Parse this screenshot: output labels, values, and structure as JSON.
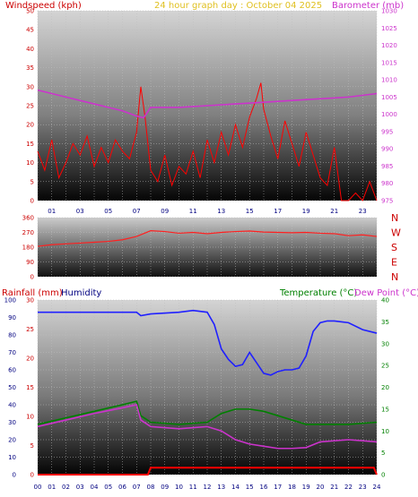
{
  "header": {
    "wind_label": "Windspeed (kph)",
    "title": "24 hour graph day : October 04 2025",
    "baro_label": "Barometer (mb)",
    "rain_label": "Rainfall (mm)",
    "humidity_label": "Humidity",
    "temp_label": "Temperature (°C)",
    "dew_label": "Dew Point (°C)"
  },
  "colors": {
    "wind": "#ff0000",
    "wind_avg": "#3030ff",
    "gust_low": "#008000",
    "baro": "#cc33cc",
    "direction": "#ff0000",
    "humidity": "#2020ff",
    "temperature": "#008000",
    "dewpoint": "#cc33cc",
    "rain": "#ff0000",
    "title": "#e0c020",
    "axis_red": "#cc0000",
    "axis_navy": "#000080"
  },
  "x_ticks": [
    "01",
    "03",
    "05",
    "07",
    "09",
    "11",
    "13",
    "15",
    "17",
    "19",
    "21",
    "23"
  ],
  "x_ticks_bottom": [
    "00",
    "01",
    "02",
    "03",
    "04",
    "05",
    "06",
    "07",
    "08",
    "09",
    "10",
    "11",
    "12",
    "13",
    "14",
    "15",
    "16",
    "17",
    "18",
    "19",
    "20",
    "21",
    "22",
    "23",
    "24"
  ],
  "chart_data": [
    {
      "type": "line",
      "title": "24 hour graph day : October 04 2025",
      "ylabel": "Windspeed (kph)",
      "y2label": "Barometer (mb)",
      "ylim": [
        0,
        50
      ],
      "y2lim": [
        975,
        1030
      ],
      "y_ticks": [
        0,
        5,
        10,
        15,
        20,
        25,
        30,
        35,
        40,
        45,
        50
      ],
      "y2_ticks": [
        975,
        980,
        985,
        990,
        995,
        1000,
        1005,
        1010,
        1015,
        1020,
        1025,
        1030
      ],
      "grid": true,
      "series": [
        {
          "name": "Windspeed (kph)",
          "axis": "left",
          "x": [
            0,
            0.5,
            1,
            1.5,
            2,
            2.5,
            3,
            3.5,
            4,
            4.5,
            5,
            5.5,
            6,
            6.5,
            7,
            7.3,
            7.6,
            8,
            8.5,
            9,
            9.5,
            10,
            10.5,
            11,
            11.5,
            12,
            12.5,
            13,
            13.5,
            14,
            14.5,
            15,
            15.5,
            15.8,
            16,
            16.5,
            17,
            17.5,
            18,
            18.5,
            19,
            19.5,
            20,
            20.5,
            21,
            21.5,
            22,
            22.5,
            23,
            23.5,
            24
          ],
          "y": [
            13,
            8,
            16,
            6,
            10,
            15,
            12,
            17,
            9,
            14,
            10,
            16,
            13,
            11,
            18,
            30,
            22,
            8,
            5,
            12,
            4,
            9,
            7,
            13,
            6,
            16,
            10,
            18,
            12,
            20,
            14,
            22,
            27,
            31,
            24,
            17,
            11,
            21,
            15,
            9,
            18,
            12,
            6,
            4,
            14,
            0,
            0,
            2,
            0,
            5,
            0
          ]
        },
        {
          "name": "Barometer (mb)",
          "axis": "right",
          "x": [
            0,
            2,
            4,
            6,
            7,
            7.5,
            8,
            10,
            12,
            14,
            16,
            18,
            20,
            22,
            24
          ],
          "y": [
            1007,
            1005,
            1003,
            1001,
            999.5,
            999,
            1002,
            1002,
            1002.5,
            1003,
            1003.5,
            1004,
            1004.5,
            1005,
            1006
          ]
        }
      ]
    },
    {
      "type": "line",
      "ylabel": "Wind direction",
      "ylim": [
        0,
        360
      ],
      "y_ticks": [
        0,
        90,
        180,
        270,
        360
      ],
      "y2_ticks": [
        "N",
        "E",
        "S",
        "W",
        "N"
      ],
      "grid": true,
      "series": [
        {
          "name": "Wind direction",
          "x": [
            0,
            1,
            2,
            3,
            4,
            5,
            6,
            7,
            8,
            9,
            10,
            11,
            12,
            13,
            14,
            15,
            16,
            17,
            18,
            19,
            20,
            21,
            22,
            23,
            24
          ],
          "y": [
            185,
            195,
            200,
            205,
            210,
            215,
            225,
            245,
            280,
            275,
            265,
            270,
            262,
            270,
            275,
            278,
            272,
            270,
            268,
            270,
            265,
            262,
            250,
            255,
            245
          ]
        }
      ]
    },
    {
      "type": "line",
      "ylabel": "Rainfall (mm)",
      "ylim": [
        0,
        100
      ],
      "y_ticks_rain": [
        0,
        5,
        10,
        15,
        20,
        25,
        30
      ],
      "y_ticks_humidity": [
        0,
        10,
        20,
        30,
        40,
        50,
        60,
        70,
        80,
        90,
        100
      ],
      "y2_ticks": [
        0,
        5,
        10,
        15,
        20,
        25,
        30,
        35,
        40
      ],
      "grid": true,
      "series": [
        {
          "name": "Humidity",
          "x": [
            0,
            2,
            4,
            6,
            7,
            7.3,
            8,
            10,
            11,
            12,
            12.5,
            13,
            13.5,
            14,
            14.5,
            15,
            15.5,
            16,
            16.5,
            17,
            17.5,
            18,
            18.5,
            19,
            19.5,
            20,
            20.5,
            21,
            22,
            23,
            24
          ],
          "y": [
            93,
            93,
            93,
            93,
            93,
            91,
            92,
            93,
            94,
            93,
            86,
            72,
            66,
            62,
            63,
            70,
            64,
            58,
            57,
            59,
            60,
            60,
            61,
            68,
            82,
            87,
            88,
            88,
            87,
            83,
            81
          ]
        },
        {
          "name": "Temperature (°C)",
          "x": [
            0,
            2,
            4,
            6,
            7,
            7.3,
            8,
            10,
            12,
            13,
            14,
            15,
            16,
            17,
            18,
            19,
            20,
            22,
            24
          ],
          "y": [
            11.5,
            13,
            14.5,
            16,
            16.8,
            13.5,
            12,
            11.5,
            12,
            14,
            15,
            15,
            14.5,
            13.5,
            12.5,
            11.5,
            11.5,
            11.5,
            12
          ]
        },
        {
          "name": "Dew Point (°C)",
          "x": [
            0,
            2,
            4,
            6,
            7,
            7.3,
            8,
            10,
            12,
            13,
            14,
            15,
            16,
            17,
            18,
            19,
            20,
            22,
            24
          ],
          "y": [
            11,
            12.5,
            14,
            15.3,
            16,
            12.5,
            11,
            10.5,
            11,
            10,
            8,
            7,
            6.5,
            6,
            6,
            6.2,
            7.5,
            8,
            7.5
          ]
        },
        {
          "name": "Rainfall (mm)",
          "x": [
            0,
            7.8,
            8,
            19.8,
            20,
            23.8,
            24
          ],
          "y": [
            0,
            0,
            1.2,
            1.2,
            1.2,
            1.2,
            0
          ]
        }
      ]
    }
  ]
}
